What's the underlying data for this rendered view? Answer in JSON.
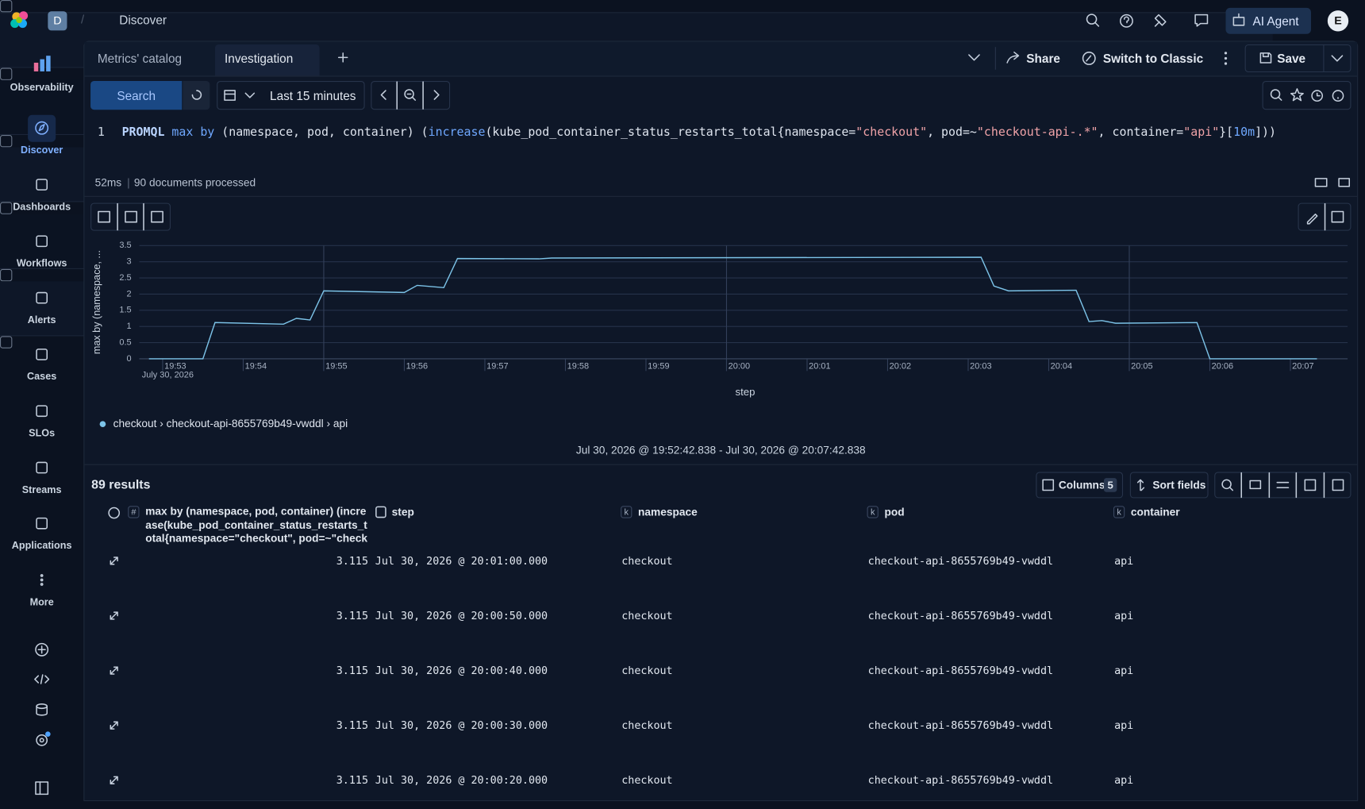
{
  "header": {
    "workspace": "D",
    "breadcrumb": "Discover",
    "ai_agent": "AI Agent",
    "user": "E"
  },
  "sidebar": [
    "Observability",
    "Discover",
    "Dashboards",
    "Workflows",
    "Alerts",
    "Cases",
    "SLOs",
    "Streams",
    "Applications",
    "More"
  ],
  "tabs": [
    "Metrics' catalog",
    "Investigation"
  ],
  "actions": {
    "share": "Share",
    "switch": "Switch to Classic",
    "save": "Save"
  },
  "query_bar": {
    "search": "Search",
    "time_range": "Last 15 minutes"
  },
  "query": {
    "line": "1",
    "tokens": [
      "PROMQL",
      " max by ",
      "(namespace, pod, container) (",
      "increase",
      "(kube_pod_container_status_restarts_total{namespace=",
      "\"checkout\"",
      ", pod=~",
      "\"checkout-api-.*\"",
      ", container=",
      "\"api\"",
      "}[",
      "10m",
      "]))"
    ]
  },
  "stats": {
    "took": "52ms",
    "documents": "90 documents processed"
  },
  "chart": {
    "type": "line",
    "y_label": "max by (namespace, ...",
    "x_label": "step",
    "date_label": "July 30, 2026",
    "x": [
      52.83,
      53.5,
      53.65,
      54.5,
      54.66,
      54.83,
      55.0,
      56.0,
      56.16,
      56.49,
      56.66,
      57.67,
      57.83,
      63.16,
      63.32,
      63.5,
      64.34,
      64.5,
      64.66,
      64.83,
      65.84,
      66.0,
      67.33
    ],
    "series": [
      {
        "name": "checkout › checkout-api-8655769b49-vwddl › api",
        "color": "#7cc3e8",
        "values": [
          0,
          0,
          1.12,
          1.07,
          1.25,
          1.2,
          2.1,
          2.05,
          2.27,
          2.2,
          3.1,
          3.09,
          3.115,
          3.14,
          2.25,
          2.1,
          2.12,
          1.15,
          1.18,
          1.1,
          1.12,
          0,
          0
        ]
      }
    ],
    "xlim": [
      52.71,
      67.71
    ],
    "xticks": [
      {
        "value": 53,
        "label": "19:53"
      },
      {
        "value": 54,
        "label": "19:54"
      },
      {
        "value": 55,
        "label": "19:55"
      },
      {
        "value": 56,
        "label": "19:56"
      },
      {
        "value": 57,
        "label": "19:57"
      },
      {
        "value": 58,
        "label": "19:58"
      },
      {
        "value": 59,
        "label": "19:59"
      },
      {
        "value": 60,
        "label": "20:00"
      },
      {
        "value": 61,
        "label": "20:01"
      },
      {
        "value": 62,
        "label": "20:02"
      },
      {
        "value": 63,
        "label": "20:03"
      },
      {
        "value": 64,
        "label": "20:04"
      },
      {
        "value": 65,
        "label": "20:05"
      },
      {
        "value": 66,
        "label": "20:06"
      },
      {
        "value": 67,
        "label": "20:07"
      }
    ],
    "ylim": [
      0,
      3.5
    ],
    "yticks": [
      0,
      0.5,
      1,
      1.5,
      2,
      2.5,
      3,
      3.5
    ],
    "grid": true,
    "time_range": "Jul 30, 2026 @ 19:52:42.838 - Jul 30, 2026 @ 20:07:42.838"
  },
  "results": {
    "count": "89 results",
    "columns_button": "Columns",
    "columns_count": 5,
    "sort": "Sort fields"
  },
  "table": {
    "columns": [
      {
        "icon": "#",
        "label": "max by (namespace, pod, container) (increase(kube_pod_container_status_restarts_total{namespace=\"checkout\", pod=~\"checkout-api-.*\"..."
      },
      {
        "label": "step"
      },
      {
        "icon": "k",
        "label": "namespace"
      },
      {
        "icon": "k",
        "label": "pod"
      },
      {
        "icon": "k",
        "label": "container"
      }
    ],
    "rows": [
      [
        3.115,
        "Jul 30, 2026 @ 20:01:00.000",
        "checkout",
        "checkout-api-8655769b49-vwddl",
        "api"
      ],
      [
        3.115,
        "Jul 30, 2026 @ 20:00:50.000",
        "checkout",
        "checkout-api-8655769b49-vwddl",
        "api"
      ],
      [
        3.115,
        "Jul 30, 2026 @ 20:00:40.000",
        "checkout",
        "checkout-api-8655769b49-vwddl",
        "api"
      ],
      [
        3.115,
        "Jul 30, 2026 @ 20:00:30.000",
        "checkout",
        "checkout-api-8655769b49-vwddl",
        "api"
      ],
      [
        3.115,
        "Jul 30, 2026 @ 20:00:20.000",
        "checkout",
        "checkout-api-8655769b49-vwddl",
        "api"
      ]
    ]
  }
}
